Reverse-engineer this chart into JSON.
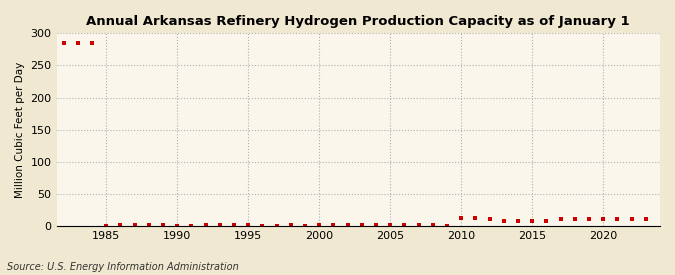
{
  "title": "Annual Arkansas Refinery Hydrogen Production Capacity as of January 1",
  "ylabel": "Million Cubic Feet per Day",
  "source_text": "Source: U.S. Energy Information Administration",
  "background_color": "#f0e8d0",
  "plot_background_color": "#faf6ec",
  "marker_color": "#cc0000",
  "grid_color": "#b0b0b0",
  "years": [
    1982,
    1983,
    1984,
    1985,
    1986,
    1987,
    1988,
    1989,
    1990,
    1991,
    1992,
    1993,
    1994,
    1995,
    1996,
    1997,
    1998,
    1999,
    2000,
    2001,
    2002,
    2003,
    2004,
    2005,
    2006,
    2007,
    2008,
    2009,
    2010,
    2011,
    2012,
    2013,
    2014,
    2015,
    2016,
    2017,
    2018,
    2019,
    2020,
    2021,
    2022,
    2023
  ],
  "values": [
    285,
    285,
    285,
    0,
    1,
    1,
    2,
    2,
    0,
    0,
    1,
    1,
    1,
    1,
    0,
    0,
    1,
    0,
    1,
    1,
    1,
    1,
    1,
    1,
    1,
    1,
    1,
    0,
    12,
    12,
    10,
    8,
    8,
    8,
    8,
    10,
    10,
    10,
    10,
    10,
    10,
    10
  ],
  "ylim": [
    0,
    300
  ],
  "yticks": [
    0,
    50,
    100,
    150,
    200,
    250,
    300
  ],
  "xlim": [
    1981.5,
    2024
  ],
  "xticks": [
    1985,
    1990,
    1995,
    2000,
    2005,
    2010,
    2015,
    2020
  ]
}
